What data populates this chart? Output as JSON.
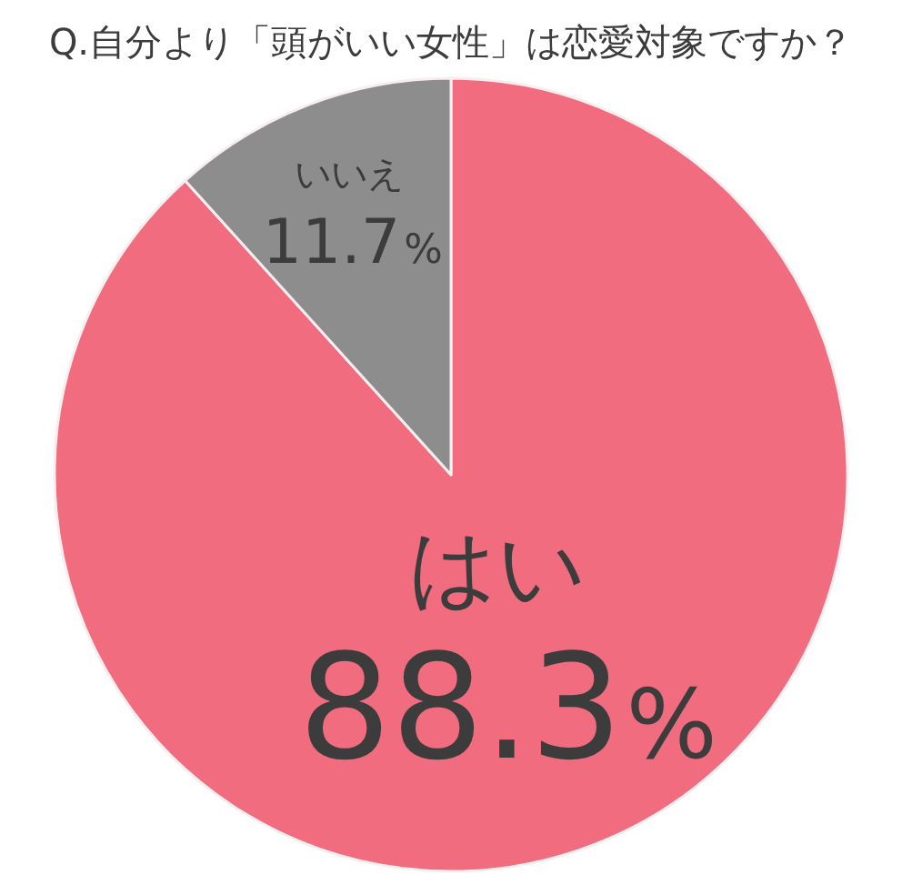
{
  "chart_data": {
    "type": "pie",
    "title": "Q.自分より「頭がいい女性」は恋愛対象ですか？",
    "categories": [
      "はい",
      "いいえ"
    ],
    "values": [
      88.3,
      11.7
    ],
    "colors": [
      "#f06c7e",
      "#8d8d8d"
    ],
    "value_labels": [
      "88.3%",
      "11.7%"
    ]
  }
}
